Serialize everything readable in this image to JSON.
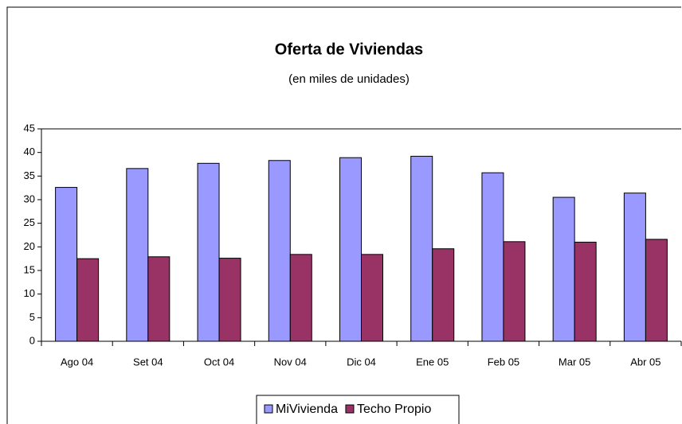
{
  "chart_data": {
    "type": "bar",
    "title": "Oferta de Viviendas",
    "subtitle": "(en miles de unidades)",
    "categories": [
      "Ago 04",
      "Set 04",
      "Oct 04",
      "Nov 04",
      "Dic 04",
      "Ene 05",
      "Feb 05",
      "Mar 05",
      "Abr 05"
    ],
    "series": [
      {
        "name": "MiVivienda",
        "color": "#9999ff",
        "values": [
          32.6,
          36.6,
          37.7,
          38.3,
          38.9,
          39.2,
          35.7,
          30.5,
          31.4
        ]
      },
      {
        "name": "Techo Propio",
        "color": "#993366",
        "values": [
          17.5,
          17.9,
          17.6,
          18.4,
          18.4,
          19.6,
          21.1,
          21.0,
          21.6
        ]
      }
    ],
    "ylim": [
      0,
      45
    ],
    "yticks": [
      0,
      5,
      10,
      15,
      20,
      25,
      30,
      35,
      40,
      45
    ],
    "grid": false,
    "legend": "bottom"
  }
}
